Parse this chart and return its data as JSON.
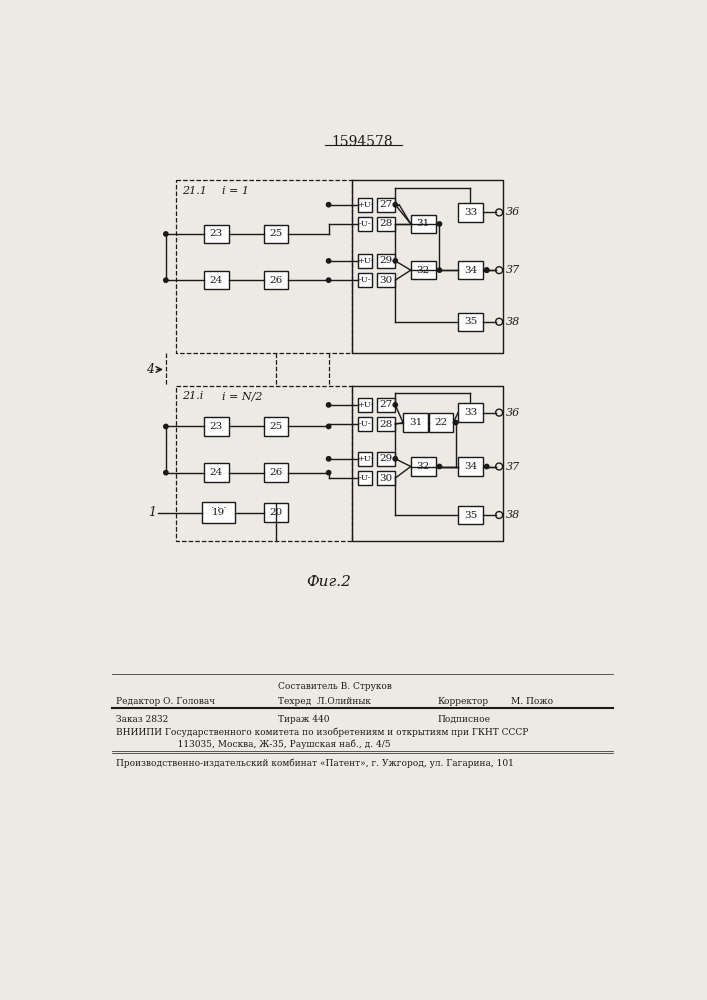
{
  "patent_number": "1594578",
  "fig_label": "Фиг.2",
  "background_color": "#ede9e3",
  "line_color": "#1a1a1a",
  "box_color": "#ffffff",
  "footer": {
    "line1_left": "Редактор О. Головач",
    "line1_mid1": "Составитель В. Струков",
    "line1_mid2": "Техред  Л.Олийнык",
    "line1_right1": "Корректор",
    "line1_right2": "М. Пожо",
    "line2_left": "Заказ 2832",
    "line2_mid": "Тираж 440",
    "line2_right": "Подписное",
    "line3": "ВНИИПИ Государственного комитета по изобретениям и открытиям при ГКНТ СССР",
    "line4": "           113035, Москва, Ж-35, Раушская наб., д. 4/5",
    "line5": "Производственно-издательский комбинат «Патент», г. Ужгород, ул. Гагарина, 101"
  },
  "top_block_label": "21.1",
  "top_block_i": "i = 1",
  "bot_block_label": "21.i",
  "bot_block_i": "i = N/2"
}
